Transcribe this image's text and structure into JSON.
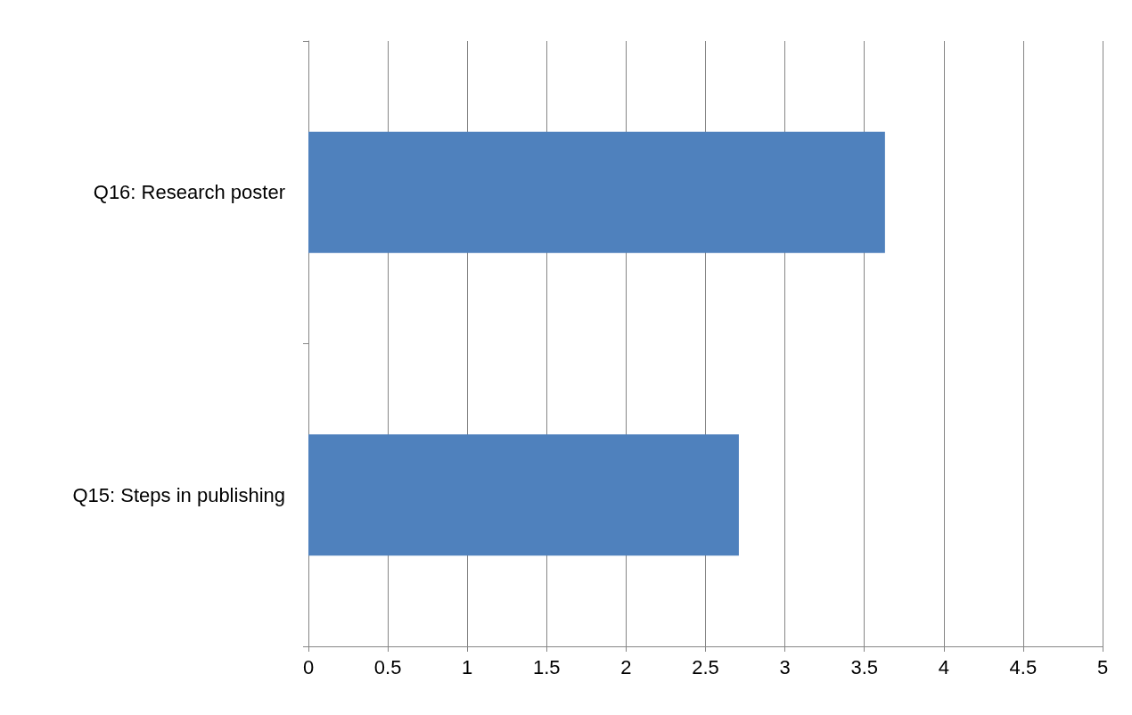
{
  "chart_data": {
    "type": "bar",
    "orientation": "horizontal",
    "categories": [
      "Q16: Research poster",
      "Q15: Steps in publishing"
    ],
    "values": [
      3.63,
      2.71
    ],
    "color": "#4f81bd",
    "xlim": [
      0,
      5
    ],
    "xticks": [
      0,
      0.5,
      1,
      1.5,
      2,
      2.5,
      3,
      3.5,
      4,
      4.5,
      5
    ],
    "grid": "x"
  }
}
